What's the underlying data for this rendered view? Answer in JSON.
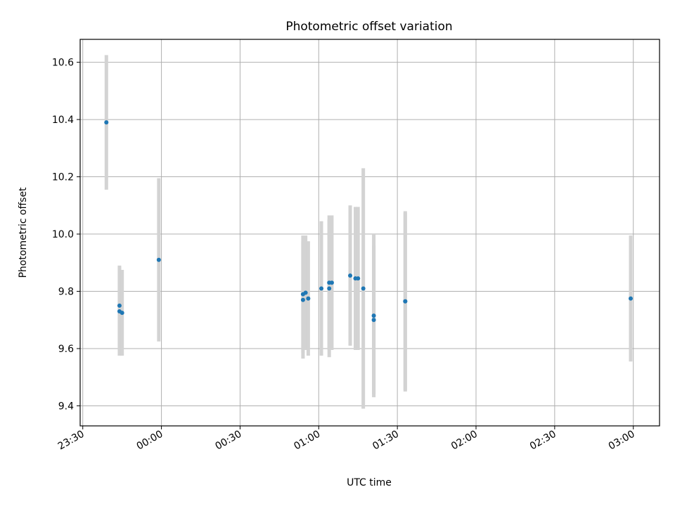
{
  "chart_data": {
    "type": "scatter",
    "title": "Photometric offset variation",
    "xlabel": "UTC time",
    "ylabel": "Photometric offset",
    "x_axis_type": "time",
    "x_range": [
      "23:29",
      "03:10"
    ],
    "y_range": [
      9.33,
      10.68
    ],
    "x_ticks": [
      "23:30",
      "00:00",
      "00:30",
      "01:00",
      "01:30",
      "02:00",
      "02:30",
      "03:00"
    ],
    "y_ticks": [
      9.4,
      9.6,
      9.8,
      10.0,
      10.2,
      10.4,
      10.6
    ],
    "grid": true,
    "point_color": "#1f77b4",
    "error_bar_color": "#d3d3d3",
    "points": [
      {
        "x": "23:39",
        "y": 10.39,
        "err": 0.235
      },
      {
        "x": "23:44",
        "y": 9.75,
        "err": 0.14
      },
      {
        "x": "23:44",
        "y": 9.73,
        "err": 0.155
      },
      {
        "x": "23:45",
        "y": 9.725,
        "err": 0.15
      },
      {
        "x": "23:59",
        "y": 9.91,
        "err": 0.285
      },
      {
        "x": "00:54",
        "y": 9.77,
        "err": 0.205
      },
      {
        "x": "00:54",
        "y": 9.79,
        "err": 0.205
      },
      {
        "x": "00:55",
        "y": 9.795,
        "err": 0.2
      },
      {
        "x": "00:56",
        "y": 9.775,
        "err": 0.2
      },
      {
        "x": "01:01",
        "y": 9.81,
        "err": 0.235
      },
      {
        "x": "01:04",
        "y": 9.81,
        "err": 0.24
      },
      {
        "x": "01:04",
        "y": 9.83,
        "err": 0.235
      },
      {
        "x": "01:05",
        "y": 9.83,
        "err": 0.235
      },
      {
        "x": "01:12",
        "y": 9.855,
        "err": 0.245
      },
      {
        "x": "01:14",
        "y": 9.845,
        "err": 0.25
      },
      {
        "x": "01:15",
        "y": 9.845,
        "err": 0.25
      },
      {
        "x": "01:17",
        "y": 9.81,
        "err": 0.42
      },
      {
        "x": "01:21",
        "y": 9.715,
        "err": 0.285
      },
      {
        "x": "01:21",
        "y": 9.7,
        "err": 0.26
      },
      {
        "x": "01:33",
        "y": 9.765,
        "err": 0.315
      },
      {
        "x": "01:33",
        "y": 9.765,
        "err": 0.31
      },
      {
        "x": "02:59",
        "y": 9.775,
        "err": 0.22
      }
    ]
  }
}
